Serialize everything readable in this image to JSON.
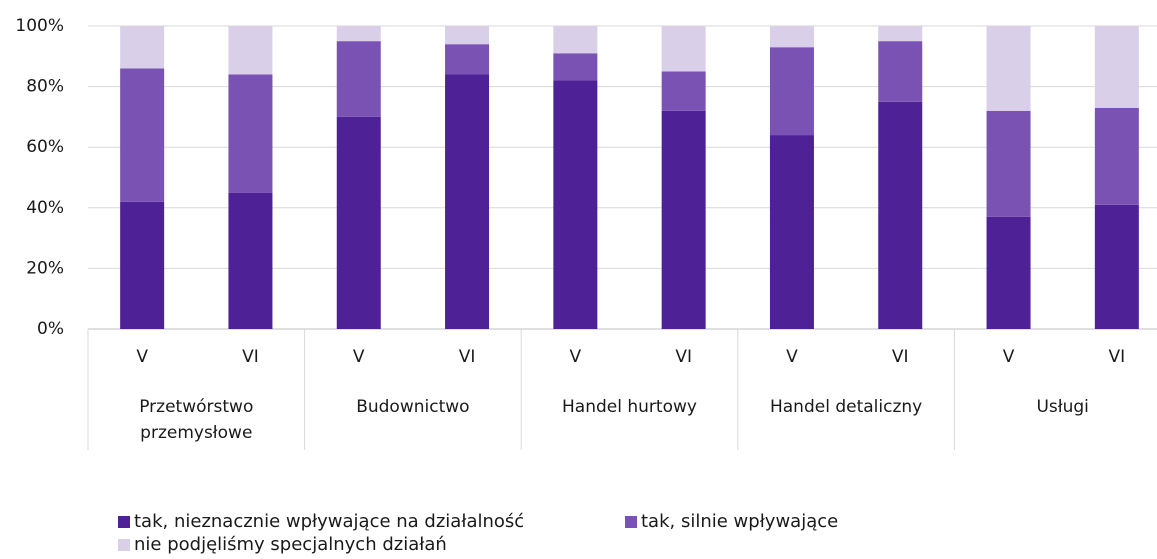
{
  "chart_data": {
    "type": "stacked_bar",
    "categories": [
      "V",
      "VI",
      "V",
      "VI",
      "V",
      "VI",
      "V",
      "VI",
      "V",
      "VI"
    ],
    "groups": [
      "Przetwórstwo przemysłowe",
      "Budownictwo",
      "Handel hurtowy",
      "Handel detaliczny",
      "Usługi"
    ],
    "series": [
      {
        "name": "tak, nieznacznie wpływające na działalność",
        "color": "#4f2196",
        "values": [
          42,
          45,
          70,
          84,
          82,
          72,
          64,
          75,
          37,
          41
        ]
      },
      {
        "name": "tak, silnie wpływające",
        "color": "#7a52b3",
        "values": [
          44,
          39,
          25,
          10,
          9,
          13,
          29,
          20,
          35,
          32
        ]
      },
      {
        "name": "nie podjęliśmy specjalnych działań",
        "color": "#d9cfe9",
        "values": [
          14,
          16,
          5,
          6,
          9,
          15,
          7,
          5,
          28,
          27
        ]
      }
    ],
    "ylim": [
      0,
      100
    ],
    "yticks": [
      {
        "value": 0,
        "label": "0%"
      },
      {
        "value": 20,
        "label": "20%"
      },
      {
        "value": 40,
        "label": "40%"
      },
      {
        "value": 60,
        "label": "60%"
      },
      {
        "value": 80,
        "label": "80%"
      },
      {
        "value": 100,
        "label": "100%"
      }
    ],
    "grid": true
  }
}
